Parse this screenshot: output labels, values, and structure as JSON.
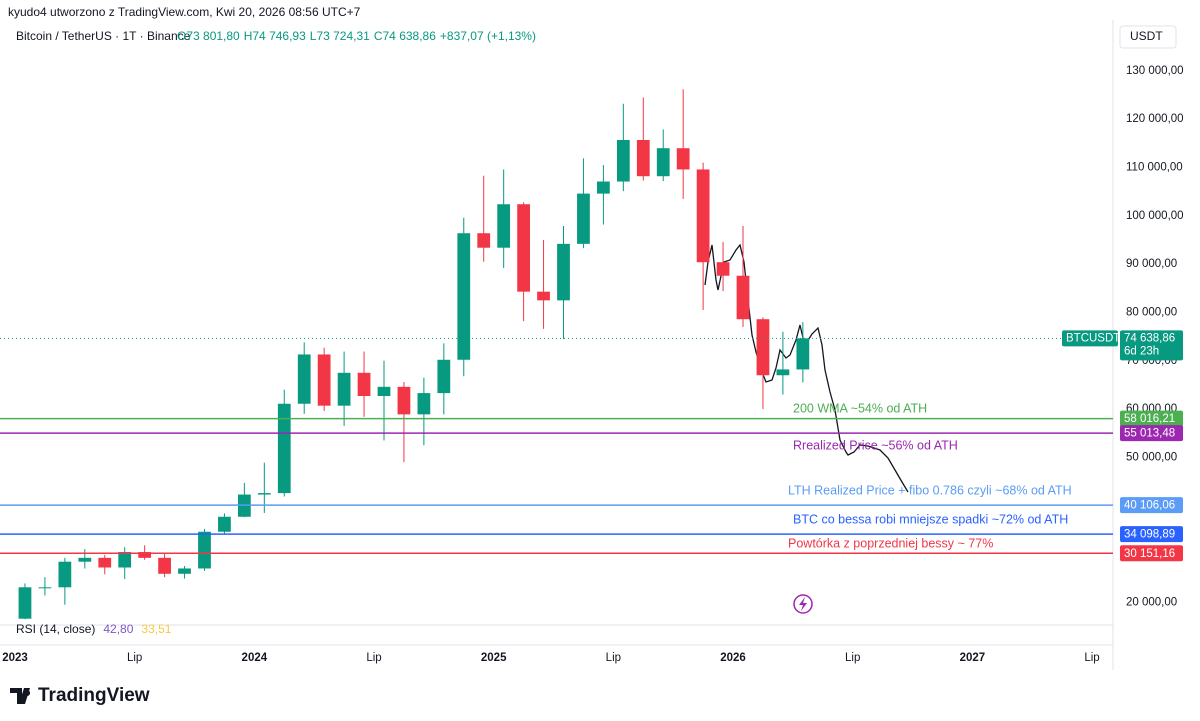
{
  "header": {
    "caption": "kyudo4 utworzono z TradingView.com, Kwi 20, 2026 08:56 UTC+7",
    "brand": "TradingView"
  },
  "chart_data": {
    "type": "candlestick",
    "title": "Bitcoin / TetherUS · 1T · Binance",
    "ohlc": [
      "O73 801,80",
      "H74 746,93",
      "L73 724,31",
      "C74 638,86",
      "+837,07 (+1,13%)"
    ],
    "currency": "USDT",
    "x": [
      "2023-01",
      "2023-02",
      "2023-03",
      "2023-04",
      "2023-05",
      "2023-06",
      "2023-07",
      "2023-08",
      "2023-09",
      "2023-10",
      "2023-11",
      "2023-12",
      "2024-01",
      "2024-02",
      "2024-03",
      "2024-04",
      "2024-05",
      "2024-06",
      "2024-07",
      "2024-08",
      "2024-09",
      "2024-10",
      "2024-11",
      "2024-12",
      "2025-01",
      "2025-02",
      "2025-03",
      "2025-04",
      "2025-05",
      "2025-06",
      "2025-07",
      "2025-08",
      "2025-09",
      "2025-10",
      "2025-11",
      "2025-12",
      "2026-01",
      "2026-02",
      "2026-03",
      "2026-04"
    ],
    "open": [
      16600,
      23100,
      23100,
      28400,
      29200,
      27200,
      30400,
      29200,
      25900,
      27000,
      34600,
      37700,
      42300,
      42600,
      61100,
      71300,
      60700,
      67500,
      62700,
      64600,
      58900,
      63300,
      70200,
      96400,
      93400,
      102400,
      84300,
      82500,
      94200,
      104600,
      107100,
      115700,
      108200,
      114000,
      109600,
      90400,
      87600,
      78600,
      67000,
      68200
    ],
    "high": [
      23900,
      25200,
      29200,
      31000,
      29800,
      31400,
      31800,
      30000,
      27500,
      35200,
      38400,
      44700,
      48900,
      64000,
      73800,
      72700,
      71900,
      71900,
      70000,
      65600,
      66500,
      73600,
      99600,
      108300,
      109600,
      102800,
      95000,
      97900,
      111900,
      110500,
      123200,
      124500,
      117900,
      126200,
      111000,
      94600,
      97900,
      79000,
      76000,
      78000
    ],
    "low": [
      16500,
      21400,
      19500,
      27000,
      25800,
      24800,
      28800,
      25200,
      24900,
      26500,
      34100,
      37600,
      38500,
      41900,
      59000,
      59600,
      56500,
      58400,
      53500,
      49000,
      52500,
      58900,
      66800,
      90500,
      89200,
      78200,
      76600,
      74500,
      93300,
      98200,
      105100,
      107300,
      107200,
      103500,
      80500,
      84400,
      77000,
      60000,
      63000,
      65500
    ],
    "close": [
      23100,
      23100,
      28400,
      29200,
      27200,
      30400,
      29200,
      25900,
      27000,
      34600,
      37700,
      42300,
      42600,
      61100,
      71300,
      60700,
      67500,
      62700,
      64600,
      58900,
      63300,
      70200,
      96400,
      93400,
      102400,
      84300,
      82500,
      94200,
      104600,
      107100,
      115700,
      108200,
      114000,
      109600,
      90400,
      87600,
      78600,
      67000,
      68200,
      74638.86
    ],
    "up_color": "#089981",
    "down_color": "#f23645",
    "xlim": [
      "2023-01",
      "2027-08"
    ],
    "xticks": [
      {
        "value": "2023-01",
        "label": "2023"
      },
      {
        "value": "2023-07",
        "label": "Lip"
      },
      {
        "value": "2024-01",
        "label": "2024"
      },
      {
        "value": "2024-07",
        "label": "Lip"
      },
      {
        "value": "2025-01",
        "label": "2025"
      },
      {
        "value": "2025-07",
        "label": "Lip"
      },
      {
        "value": "2026-01",
        "label": "2026"
      },
      {
        "value": "2026-07",
        "label": "Lip"
      },
      {
        "value": "2027-01",
        "label": "2027"
      },
      {
        "value": "2027-07",
        "label": "Lip"
      }
    ],
    "ylim": [
      16000,
      133500
    ],
    "yticks": [
      {
        "value": 20000,
        "label": "20 000,00"
      },
      {
        "value": 50000,
        "label": "50 000,00"
      },
      {
        "value": 60000,
        "label": "60 000,00"
      },
      {
        "value": 70000,
        "label": "70 000,00"
      },
      {
        "value": 80000,
        "label": "80 000,00"
      },
      {
        "value": 90000,
        "label": "90 000,00"
      },
      {
        "value": 100000,
        "label": "100 000,00"
      },
      {
        "value": 110000,
        "label": "110 000,00"
      },
      {
        "value": 120000,
        "label": "120 000,00"
      },
      {
        "value": 130000,
        "label": "130 000,00"
      }
    ],
    "last_price": {
      "symbol": "BTCUSDT",
      "value": 74638.86,
      "label": "74 638,86",
      "countdown": "6d 23h"
    },
    "levels": [
      {
        "value": 58016.21,
        "label": "58 016,21",
        "color": "#4caf50",
        "note": "200 WMA ~54% od ATH"
      },
      {
        "value": 55013.48,
        "label": "55 013,48",
        "color": "#9c27b0",
        "note": "Rrealized Price ~56% od ATH"
      },
      {
        "value": 40106.06,
        "label": "40 106,06",
        "color": "#5b9cf6",
        "note": "LTH Realized Price + fibo 0.786 czyli ~68% od ATH"
      },
      {
        "value": 34098.89,
        "label": "34 098,89",
        "color": "#2962ff",
        "note": "BTC co bessa robi mniejsze spadki ~72% od ATH"
      },
      {
        "value": 30151.16,
        "label": "30 151,16",
        "color": "#f23645",
        "note": "Powtórka z poprzedniej bessy ~ 77%"
      }
    ],
    "rsi": {
      "title": "RSI (14, close)",
      "values": [
        42.8,
        33.51
      ],
      "value_labels": [
        "42,80",
        "33,51"
      ],
      "colors": [
        "#7e57c2",
        "#f7c948"
      ]
    }
  }
}
